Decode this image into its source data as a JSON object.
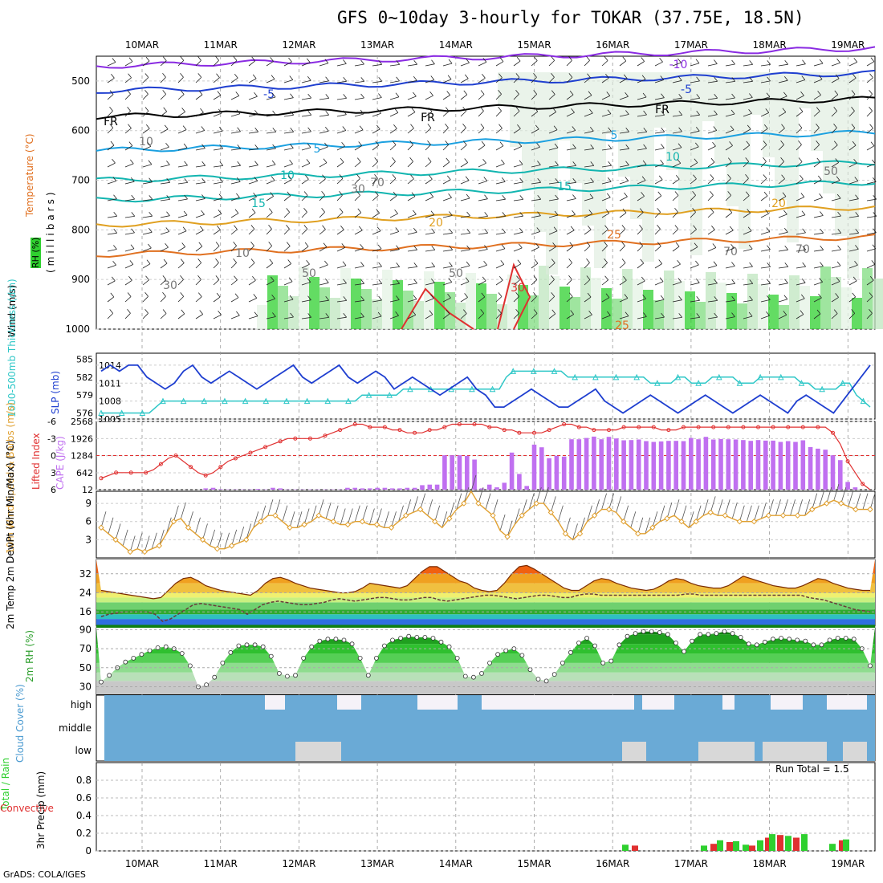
{
  "title": "GFS 0~10day 3-hourly for TOKAR (37.75E, 18.5N)",
  "credit": "GrADS: COLA/IGES",
  "days": [
    "10MAR",
    "11MAR",
    "12MAR",
    "13MAR",
    "14MAR",
    "15MAR",
    "16MAR",
    "17MAR",
    "18MAR",
    "19MAR"
  ],
  "colors": {
    "purple": "#8a2be2",
    "blue": "#1f3fd0",
    "black": "#000000",
    "lightblue": "#1ba0e0",
    "teal": "#12b5b0",
    "orange": "#e0a020",
    "darkorange": "#e07020",
    "red": "#e03030",
    "green": "#2fd02f",
    "cloud": "#6aaad6",
    "cyan": "#2ec7c7",
    "cape": "#c070f0",
    "li": "#e03030",
    "wind": "#e0a030"
  },
  "panel1": {
    "ylabel_wind": "Wind (m/s)",
    "ylabel_temp": "Temperature (°C)",
    "ylabel_mb": "(millibars)",
    "ylabel_rh": "RH (%)",
    "yticks": [
      "500",
      "600",
      "700",
      "800",
      "900",
      "1000"
    ],
    "contour_labels": [
      "-10",
      "-5",
      "-5",
      "FR",
      "FR",
      "FR",
      "5",
      "5",
      "10",
      "10",
      "15",
      "15",
      "20",
      "20",
      "25",
      "25",
      "30",
      "50",
      "50",
      "70",
      "70",
      "10",
      "30",
      "10",
      "30",
      "50",
      "70"
    ]
  },
  "panel2": {
    "ylabel_left": "1000-500mb Thickness (dm)",
    "ylabel_right": "SLP (mb)",
    "left_ticks": [
      "585",
      "582",
      "579",
      "576"
    ],
    "right_ticks": [
      "1014",
      "1011",
      "1008",
      "1005"
    ],
    "slp": [
      1013,
      1014,
      1013,
      1014,
      1014,
      1012,
      1011,
      1010,
      1011,
      1013,
      1014,
      1012,
      1011,
      1012,
      1013,
      1012,
      1011,
      1010,
      1011,
      1012,
      1013,
      1014,
      1012,
      1011,
      1012,
      1013,
      1014,
      1012,
      1011,
      1012,
      1013,
      1012,
      1010,
      1011,
      1012,
      1011,
      1010,
      1009,
      1010,
      1011,
      1012,
      1010,
      1009,
      1007,
      1007,
      1008,
      1009,
      1010,
      1009,
      1008,
      1007,
      1007,
      1008,
      1009,
      1010,
      1008,
      1007,
      1006,
      1007,
      1008,
      1009,
      1008,
      1007,
      1006,
      1007,
      1008,
      1009,
      1008,
      1007,
      1006,
      1007,
      1008,
      1009,
      1008,
      1007,
      1006,
      1008,
      1009,
      1008,
      1007,
      1006,
      1008,
      1010,
      1012,
      1014
    ],
    "thick": [
      576,
      576,
      576,
      576,
      576,
      576,
      576,
      576,
      577,
      578,
      578,
      578,
      578,
      578,
      578,
      578,
      578,
      578,
      578,
      578,
      578,
      578,
      578,
      578,
      578,
      578,
      578,
      578,
      578,
      578,
      578,
      578,
      578,
      578,
      578,
      578,
      578,
      578,
      579,
      579,
      579,
      579,
      579,
      579,
      580,
      580,
      580,
      580,
      580,
      580,
      580,
      580,
      580,
      580,
      580,
      580,
      580,
      580,
      580,
      582,
      583,
      583,
      583,
      583,
      583,
      583,
      583,
      583,
      582,
      582,
      582,
      582,
      582,
      582,
      582,
      582,
      582,
      582,
      582,
      582,
      581,
      581,
      581,
      581,
      582,
      582,
      581,
      581,
      581,
      582,
      582,
      582,
      582,
      581,
      581,
      581,
      582,
      582,
      582,
      582,
      582,
      582,
      581,
      581,
      580,
      580,
      580,
      580,
      581,
      581,
      579,
      578,
      577
    ]
  },
  "panel3": {
    "ylabel_left": "Lifted Index",
    "ylabel_right": "CAPE (J/kg)",
    "left_ticks": [
      "-3",
      "0",
      "3",
      "6",
      "-6"
    ],
    "right_ticks": [
      "2568",
      "1926",
      "1284",
      "642",
      "12"
    ],
    "cape": [
      12,
      12,
      12,
      12,
      12,
      12,
      12,
      12,
      12,
      12,
      12,
      12,
      12,
      12,
      60,
      80,
      30,
      20,
      20,
      20,
      20,
      40,
      20,
      80,
      60,
      20,
      20,
      20,
      20,
      20,
      20,
      20,
      20,
      80,
      80,
      60,
      60,
      80,
      80,
      60,
      60,
      80,
      80,
      180,
      200,
      200,
      1300,
      1300,
      1300,
      1280,
      1140,
      60,
      200,
      100,
      270,
      1400,
      600,
      150,
      1700,
      1600,
      1190,
      1280,
      1250,
      1900,
      1900,
      1950,
      2000,
      1900,
      1990,
      1930,
      1860,
      1870,
      1890,
      1830,
      1800,
      1820,
      1840,
      1840,
      1830,
      1950,
      1900,
      1990,
      1890,
      1910,
      1900,
      1890,
      1870,
      1840,
      1870,
      1850,
      1850,
      1800,
      1830,
      1800,
      1860,
      1610,
      1550,
      1510,
      1300,
      1120,
      300,
      100,
      12,
      12
    ],
    "li": [
      -4,
      -3.5,
      -3,
      -3,
      -3,
      -3,
      -3,
      -2.5,
      -1.5,
      -0.5,
      0,
      -1,
      -2,
      -3,
      -3.5,
      -3,
      -2,
      -1,
      -0.5,
      0,
      0.5,
      1,
      1.5,
      2,
      2.5,
      3,
      3,
      3,
      3,
      3,
      3.5,
      4,
      4.5,
      5,
      5.5,
      5.5,
      5,
      5,
      5,
      4.5,
      4.5,
      4,
      4,
      4,
      4.5,
      4.5,
      5,
      5.5,
      5.5,
      5.5,
      5.5,
      5.5,
      5,
      5,
      4.5,
      4.5,
      4,
      4,
      4,
      4,
      4.5,
      5,
      5.5,
      5.5,
      5,
      5,
      4.5,
      4.5,
      4.5,
      4.5,
      5,
      5,
      5,
      5,
      5,
      4.5,
      4.5,
      4.5,
      5,
      5,
      5,
      5,
      5,
      5,
      5,
      5,
      5,
      5,
      5,
      5,
      5,
      5,
      5,
      5,
      5,
      5,
      5,
      5,
      4,
      2,
      -1,
      -3,
      -5,
      -6
    ]
  },
  "panel4": {
    "ylabel": "10m Wind Speed & Barbs (m/s)",
    "yticks": [
      "9",
      "6",
      "3"
    ],
    "speed": [
      5,
      4,
      3,
      2,
      1,
      1.5,
      1,
      1.5,
      2,
      4,
      6,
      6.5,
      5,
      4,
      3,
      2,
      1.5,
      1.5,
      2,
      2.5,
      3,
      5,
      6,
      7,
      7,
      6,
      5,
      5,
      5.5,
      6,
      7,
      6.5,
      6,
      5.5,
      5.5,
      6,
      6,
      5.5,
      5.5,
      5,
      5,
      6,
      7,
      7.5,
      8,
      7,
      6,
      5,
      6.5,
      8,
      9,
      11,
      9,
      8,
      7,
      4.5,
      3.5,
      5.5,
      7,
      8,
      9,
      9,
      7.5,
      6,
      4,
      3,
      4,
      6,
      7,
      8,
      8,
      7.5,
      6,
      5,
      4,
      4,
      5,
      6,
      6.5,
      7,
      6,
      5,
      6,
      7,
      7.5,
      7,
      7,
      6.5,
      6,
      6,
      6,
      6.5,
      7,
      7,
      7,
      7,
      7,
      7,
      8,
      8.5,
      9,
      9.5,
      9,
      8.5,
      8,
      8,
      8
    ]
  },
  "panel5": {
    "ylabel": "2m Temp 2m DewPt (6hr Min/Max) (°C)",
    "yticks": [
      "32",
      "24",
      "16"
    ],
    "temp": [
      25,
      24.5,
      24,
      23.5,
      23,
      22.5,
      22,
      21.5,
      22,
      25,
      28,
      30,
      30.5,
      29,
      27,
      26,
      25,
      24.5,
      24,
      23.5,
      23,
      25,
      28,
      30,
      30.5,
      29.5,
      28,
      27,
      26,
      25.5,
      25,
      24.5,
      24,
      24,
      24.5,
      26,
      28,
      27.5,
      27,
      26.5,
      26,
      27,
      30,
      33,
      35,
      35,
      33,
      31,
      29,
      28,
      26,
      25,
      24.5,
      25,
      28,
      32,
      35,
      35.5,
      34,
      32,
      30,
      28,
      26,
      25,
      25,
      27,
      29,
      30,
      29.5,
      28,
      27,
      26,
      25.5,
      25,
      25.5,
      27,
      29,
      30,
      29.5,
      28,
      27,
      26.5,
      26,
      26,
      27,
      29,
      31,
      30,
      29,
      28,
      27,
      26.5,
      26,
      26,
      27,
      28.5,
      30,
      29.5,
      28,
      27,
      26,
      25.5,
      25,
      25
    ],
    "dew": [
      14,
      15,
      15.5,
      16,
      16,
      16,
      16,
      15,
      12,
      13,
      15,
      17,
      19,
      19.5,
      19,
      18.5,
      18,
      17.5,
      17,
      15,
      17,
      19,
      20,
      20.5,
      20,
      19.5,
      19,
      19,
      19.5,
      20,
      21,
      21.5,
      21,
      20.5,
      21,
      21.5,
      22,
      22,
      21.5,
      21,
      21,
      21.5,
      22,
      22,
      21,
      20.5,
      21,
      21.5,
      22,
      22.5,
      23,
      23,
      22.5,
      22,
      21.5,
      22,
      22.5,
      23,
      23,
      22.5,
      22,
      22,
      23,
      23.5,
      23.5,
      23,
      23,
      23,
      23,
      23,
      23,
      23,
      23,
      23,
      23,
      23,
      23.5,
      23.5,
      23,
      23,
      23,
      23,
      23,
      23,
      23,
      23,
      23,
      23,
      23,
      23,
      23,
      23,
      22,
      21.5,
      21,
      20,
      19,
      18,
      17,
      16.5,
      16
    ]
  },
  "panel6": {
    "ylabel": "2m RH (%)",
    "yticks": [
      "90",
      "70",
      "50",
      "30"
    ],
    "rh": [
      35,
      42,
      50,
      56,
      60,
      64,
      68,
      71,
      72,
      70,
      65,
      52,
      30,
      32,
      40,
      55,
      66,
      73,
      74,
      74,
      72,
      62,
      44,
      41,
      42,
      60,
      72,
      78,
      80,
      80,
      79,
      75,
      60,
      42,
      60,
      73,
      79,
      81,
      83,
      82,
      82,
      81,
      77,
      72,
      60,
      41,
      40,
      44,
      55,
      64,
      68,
      70,
      63,
      48,
      38,
      36,
      43,
      55,
      66,
      76,
      81,
      73,
      55,
      57,
      74,
      83,
      86,
      88,
      88,
      87,
      85,
      76,
      67,
      78,
      85,
      85,
      86,
      88,
      86,
      82,
      75,
      74,
      77,
      80,
      81,
      80,
      79,
      78,
      74,
      74,
      79,
      81,
      81,
      80,
      70,
      52
    ]
  },
  "panel7": {
    "ylabel": "Cloud Cover (%)",
    "levels": [
      "high",
      "middle",
      "low"
    ]
  },
  "panel8": {
    "ylabel_total": "Total / Rain",
    "ylabel_conv": "Convective",
    "ylabel_precip": "3hr Precip (mm)",
    "yticks": [
      "0.8",
      "0.6",
      "0.4",
      "0.2",
      "0"
    ],
    "run_total_label": "Run Total = 1.5"
  }
}
